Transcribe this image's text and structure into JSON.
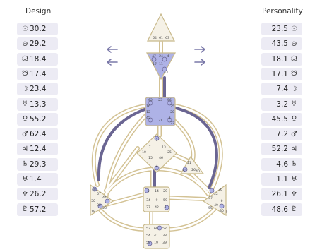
{
  "design": {
    "title": "Design",
    "items": [
      {
        "symbol": "☉",
        "value": "30.2"
      },
      {
        "symbol": "⊕",
        "value": "29.2"
      },
      {
        "symbol": "☊",
        "value": "18.4"
      },
      {
        "symbol": "☋",
        "value": "17.4"
      },
      {
        "symbol": "☽",
        "value": "23.4"
      },
      {
        "symbol": "☿",
        "value": "13.3"
      },
      {
        "symbol": "♀",
        "value": "55.2"
      },
      {
        "symbol": "♂",
        "value": "62.4"
      },
      {
        "symbol": "♃",
        "value": "12.4"
      },
      {
        "symbol": "♄",
        "value": "29.3"
      },
      {
        "symbol": "♅",
        "value": "1.4"
      },
      {
        "symbol": "♆",
        "value": "26.2"
      },
      {
        "symbol": "♇",
        "value": "57.2"
      }
    ]
  },
  "personality": {
    "title": "Personality",
    "items": [
      {
        "symbol": "☉",
        "value": "23.5"
      },
      {
        "symbol": "⊕",
        "value": "43.5"
      },
      {
        "symbol": "☊",
        "value": "18.1"
      },
      {
        "symbol": "☋",
        "value": "17.1"
      },
      {
        "symbol": "☽",
        "value": "7.4"
      },
      {
        "symbol": "☿",
        "value": "3.2"
      },
      {
        "symbol": "♀",
        "value": "45.5"
      },
      {
        "symbol": "♂",
        "value": "7.2"
      },
      {
        "symbol": "♃",
        "value": "52.2"
      },
      {
        "symbol": "♄",
        "value": "4.6"
      },
      {
        "symbol": "♅",
        "value": "1.1"
      },
      {
        "symbol": "♆",
        "value": "26.1"
      },
      {
        "symbol": "♇",
        "value": "48.6"
      }
    ]
  },
  "bodygraph": {
    "head_gates": [
      "64",
      "61",
      "63"
    ],
    "ajna_gates": [
      "47",
      "24",
      "4",
      "17",
      "11",
      "43"
    ],
    "throat_gates": [
      "62",
      "23",
      "56",
      "16",
      "35",
      "12",
      "20",
      "45",
      "31",
      "8",
      "33"
    ],
    "g_gates": [
      "1",
      "7",
      "13",
      "10",
      "25",
      "15",
      "46",
      "2"
    ],
    "heart_gates": [
      "21",
      "26",
      "51",
      "40"
    ],
    "spleen_gates": [
      "48",
      "57",
      "44",
      "50",
      "32",
      "28",
      "18"
    ],
    "sacral_gates": [
      "5",
      "14",
      "29",
      "34",
      "27",
      "42",
      "3",
      "9",
      "59"
    ],
    "solar_gates": [
      "36",
      "22",
      "37",
      "6",
      "49",
      "55",
      "30"
    ],
    "root_gates": [
      "53",
      "60",
      "52",
      "54",
      "38",
      "58",
      "19",
      "39",
      "41"
    ],
    "colors": {
      "center_fill": "#f5f1e6",
      "center_defined": "#aeb2e6",
      "center_stroke": "#c8b98b",
      "channel_outline": "#d3c294",
      "channel_defined": "#6a6592",
      "arrow": "#7a78a8"
    }
  }
}
